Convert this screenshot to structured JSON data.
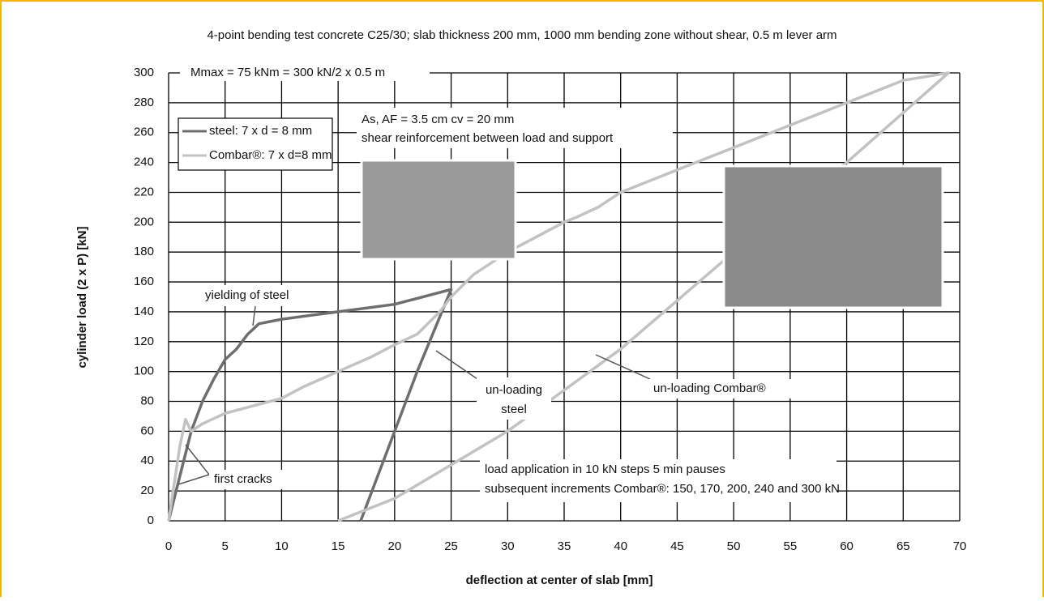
{
  "chart_data": {
    "type": "line",
    "title": "4-point bending test concrete C25/30; slab thickness 200 mm, 1000 mm bending zone without shear, 0.5 m lever arm",
    "xlabel": "deflection at center of slab [mm]",
    "ylabel": "cylinder load (2 x P) [kN]",
    "xlim": [
      0,
      70
    ],
    "ylim": [
      0,
      300
    ],
    "xticks": [
      0,
      5,
      10,
      15,
      20,
      25,
      30,
      35,
      40,
      45,
      50,
      55,
      60,
      65,
      70
    ],
    "yticks": [
      0,
      20,
      40,
      60,
      80,
      100,
      120,
      140,
      160,
      180,
      200,
      220,
      240,
      260,
      280,
      300
    ],
    "grid": true,
    "legend": "upper left",
    "series": [
      {
        "name": "steel: 7 x d = 8 mm",
        "color": "#6e6e6e",
        "x": [
          0,
          1,
          2,
          3,
          4,
          5,
          6,
          7,
          8,
          10,
          15,
          20,
          25,
          22,
          20,
          18,
          17
        ],
        "values": [
          0,
          30,
          60,
          80,
          95,
          108,
          115,
          125,
          132,
          135,
          140,
          145,
          155,
          100,
          60,
          20,
          0
        ]
      },
      {
        "name": "Combar®: 7 x d=8 mm",
        "color": "#c2c2c2",
        "x": [
          0,
          1,
          1.5,
          2,
          3,
          5,
          8,
          10,
          12,
          15,
          18,
          20,
          22,
          24,
          25,
          27,
          30,
          35,
          36,
          38,
          40,
          45,
          50,
          55,
          60,
          65,
          69,
          60,
          50,
          40,
          30,
          20,
          15
        ],
        "values": [
          0,
          50,
          68,
          60,
          65,
          72,
          78,
          82,
          90,
          100,
          110,
          118,
          125,
          140,
          150,
          165,
          180,
          200,
          203,
          210,
          220,
          235,
          250,
          265,
          280,
          295,
          300,
          240,
          180,
          115,
          60,
          15,
          0
        ]
      }
    ],
    "annotations": {
      "mmax": "Mmax = 75 kNm = 300 kN/2 x 0.5 m",
      "area": "As, AF = 3.5 cm cv = 20 mm",
      "shear": "shear reinforcement between load and support",
      "yielding": "yielding of steel",
      "unloading_steel": [
        "un-loading",
        "steel"
      ],
      "unloading_combar": "un-loading Combar®",
      "first_cracks": "first cracks",
      "load": [
        "load application in 10 kN steps 5 min pauses",
        "subsequent increments Combar®: 150, 170, 200, 240 and 300 kN"
      ]
    }
  }
}
